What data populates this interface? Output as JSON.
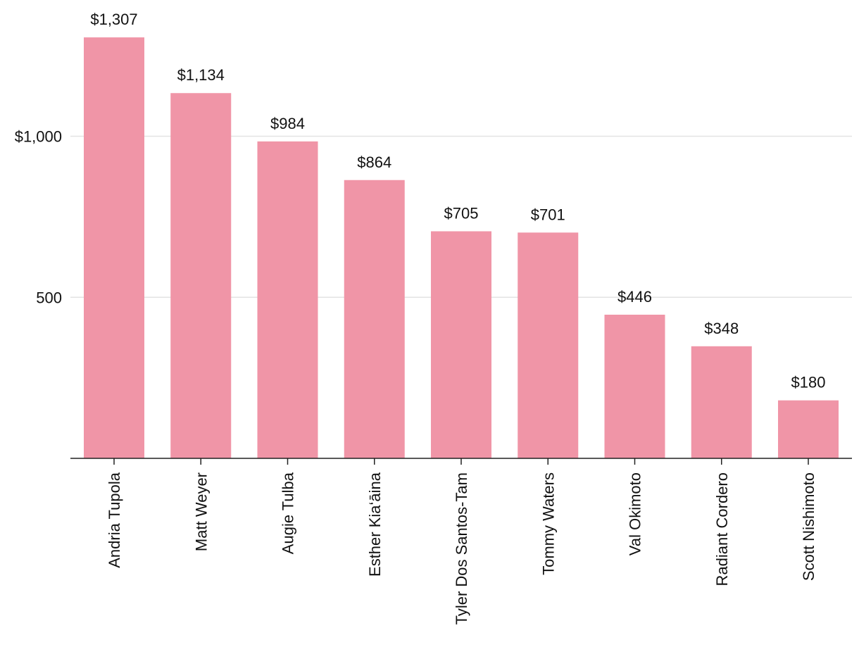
{
  "chart_data": {
    "type": "bar",
    "title": "",
    "xlabel": "",
    "ylabel": "",
    "categories": [
      "Andria Tupola",
      "Matt Weyer",
      "Augie Tulba",
      "Esther Kia‘āina",
      "Tyler Dos Santos-Tam",
      "Tommy Waters",
      "Val Okimoto",
      "Radiant Cordero",
      "Scott Nishimoto"
    ],
    "values": [
      1307,
      1134,
      984,
      864,
      705,
      701,
      446,
      348,
      180
    ],
    "value_labels": [
      "$1,307",
      "$1,134",
      "$984",
      "$864",
      "$705",
      "$701",
      "$446",
      "$348",
      "$180"
    ],
    "ylim": [
      0,
      1340
    ],
    "yticks": [
      {
        "value": 500,
        "label": "500"
      },
      {
        "value": 1000,
        "label": "$1,000"
      }
    ],
    "grid": true,
    "bar_color": "#f095a7"
  }
}
